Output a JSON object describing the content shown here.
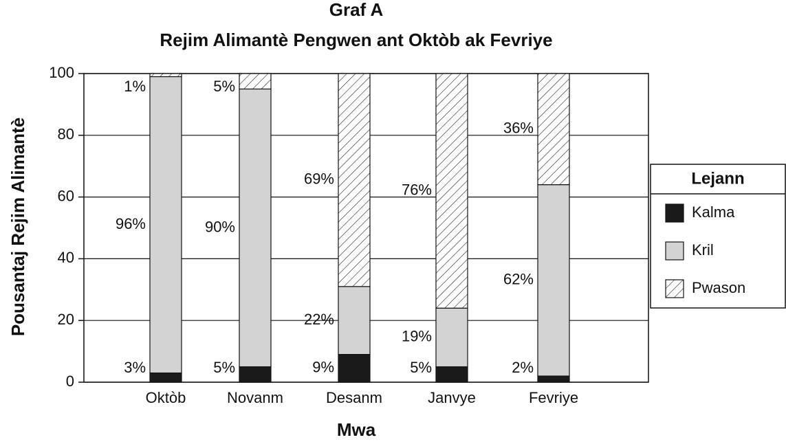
{
  "chart_data": {
    "type": "stacked_bar",
    "title": "Graf A",
    "subtitle": "Rejim Alimantè Pengwen ant Oktòb ak Fevriye",
    "x_label": "Mwa",
    "y_label": "Pousantaj Rejim Alimantè",
    "categories": [
      "Oktòb",
      "Novanm",
      "Desanm",
      "Janvye",
      "Fevriye"
    ],
    "series": [
      {
        "name": "Kalma",
        "color": "#1a1a1a",
        "values": [
          3,
          5,
          9,
          5,
          2
        ],
        "value_labels": [
          "3%",
          "5%",
          "9%",
          "5%",
          "2%"
        ]
      },
      {
        "name": "Kril",
        "color": "#d3d3d3",
        "values": [
          96,
          90,
          22,
          19,
          62
        ],
        "value_labels": [
          "96%",
          "90%",
          "22%",
          "19%",
          "62%"
        ]
      },
      {
        "name": "Pwason",
        "color": "#ffffff",
        "hatch": true,
        "values": [
          1,
          5,
          69,
          76,
          36
        ],
        "value_labels": [
          "1%",
          "5%",
          "69%",
          "76%",
          "36%"
        ]
      }
    ],
    "ylim": [
      0,
      100
    ],
    "yticks": [
      0,
      20,
      40,
      60,
      80,
      100
    ],
    "grid": true,
    "legend": {
      "title": "Lejann",
      "position": "right"
    }
  }
}
